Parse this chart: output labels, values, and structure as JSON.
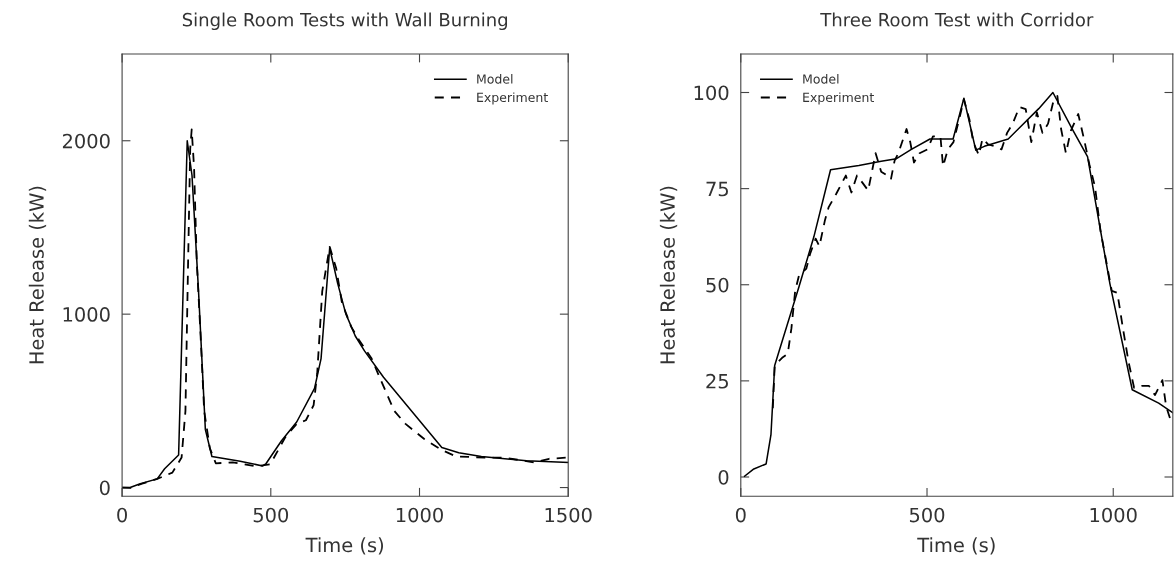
{
  "chart_data": [
    {
      "type": "line",
      "title": "Single Room Tests with Wall Burning",
      "xlabel": "Time (s)",
      "ylabel": "Heat Release (kW)",
      "xlim": [
        0,
        1500
      ],
      "xticks": [
        0,
        500,
        1000,
        1500
      ],
      "ylim": [
        -50,
        2500
      ],
      "yticks": [
        0,
        1000,
        2000
      ],
      "legend": "top right",
      "series": [
        {
          "name": "Model",
          "color": "#000000",
          "line_style": "solid",
          "x": [
            0,
            27,
            61,
            118,
            143,
            190,
            219,
            235,
            257,
            280,
            302,
            397,
            473,
            483,
            536,
            587,
            647,
            669,
            698,
            725,
            752,
            784,
            815,
            879,
            1075,
            1132,
            1208,
            1360,
            1500
          ],
          "values": [
            0,
            0,
            22,
            50,
            108,
            188,
            2000,
            1801,
            1133,
            334,
            179,
            151,
            125,
            136,
            270,
            378,
            572,
            744,
            1381,
            1176,
            1003,
            874,
            788,
            636,
            231,
            201,
            179,
            155,
            145
          ]
        },
        {
          "name": "Experiment",
          "color": "#000000",
          "line_style": "dashed",
          "x": [
            0,
            29,
            67,
            118,
            169,
            200,
            213,
            222,
            229,
            234,
            242,
            251,
            264,
            276,
            295,
            315,
            372,
            448,
            498,
            549,
            587,
            618,
            644,
            656,
            673,
            698,
            720,
            739,
            770,
            796,
            839,
            871,
            915,
            953,
            1016,
            1075,
            1124,
            1221,
            1284,
            1385,
            1436,
            1500
          ],
          "values": [
            0,
            -2,
            22,
            50,
            86,
            173,
            442,
            1305,
            1953,
            2065,
            1845,
            1305,
            874,
            442,
            227,
            140,
            145,
            123,
            134,
            291,
            367,
            388,
            475,
            658,
            1133,
            1388,
            1263,
            1068,
            928,
            852,
            744,
            615,
            442,
            367,
            280,
            216,
            179,
            173,
            173,
            145,
            166,
            173
          ]
        }
      ]
    },
    {
      "type": "line",
      "title": "Three Room Test with Corridor",
      "xlabel": "Time (s)",
      "ylabel": "Heat Release (kW)",
      "xlim": [
        0,
        1160
      ],
      "xticks": [
        0,
        500,
        1000
      ],
      "ylim": [
        -5,
        110
      ],
      "yticks": [
        0,
        25,
        50,
        75,
        100
      ],
      "legend": "top left",
      "series": [
        {
          "name": "Model",
          "color": "#000000",
          "line_style": "solid",
          "x": [
            10,
            35,
            68,
            81,
            91,
            111,
            156,
            196,
            241,
            317,
            377,
            418,
            458,
            508,
            570,
            599,
            631,
            654,
            718,
            800,
            838,
            890,
            931,
            991,
            1051,
            1122,
            1160
          ],
          "values": [
            0.2,
            2.1,
            3.4,
            11,
            29,
            35.3,
            49.4,
            62.4,
            79.9,
            81,
            82.1,
            82.8,
            85.2,
            87.9,
            87.9,
            98.5,
            85,
            86,
            87.9,
            95.8,
            100,
            90.5,
            83.3,
            50.3,
            22.7,
            19.2,
            16.7
          ]
        },
        {
          "name": "Experiment",
          "color": "#000000",
          "line_style": "dashed",
          "x": [
            86,
            91,
            111,
            126,
            136,
            146,
            156,
            176,
            186,
            201,
            211,
            226,
            236,
            256,
            282,
            297,
            312,
            327,
            342,
            362,
            377,
            393,
            403,
            413,
            423,
            445,
            455,
            465,
            480,
            501,
            516,
            536,
            543,
            556,
            571,
            586,
            599,
            614,
            624,
            639,
            649,
            664,
            684,
            700,
            715,
            730,
            748,
            765,
            780,
            795,
            810,
            825,
            838,
            850,
            860,
            873,
            886,
            906,
            921,
            936,
            951,
            966,
            981,
            996,
            1011,
            1026,
            1041,
            1056,
            1076,
            1096,
            1112,
            1132,
            1142,
            1158
          ],
          "values": [
            17.9,
            29,
            31,
            32,
            38.7,
            48.4,
            52.3,
            54.2,
            58,
            62,
            60,
            66.8,
            70.2,
            73.6,
            78.4,
            74,
            78.4,
            76.5,
            74.5,
            84.2,
            79.4,
            78.4,
            77.4,
            82.3,
            84.2,
            90.5,
            87.1,
            81.8,
            84.2,
            85.2,
            88.6,
            88.6,
            80.8,
            85.2,
            87.1,
            92.9,
            98.2,
            92.9,
            87.1,
            83.7,
            88,
            86.5,
            86,
            85.2,
            89.5,
            91.9,
            96.2,
            95.7,
            87.1,
            94.8,
            89.5,
            91.9,
            97.2,
            99.1,
            90.5,
            84.2,
            90,
            94.4,
            88.1,
            81.3,
            75.5,
            63.9,
            56.2,
            48.4,
            47.9,
            38.7,
            30,
            23.2,
            23.7,
            23.7,
            21.3,
            25.2,
            18.4,
            13.6
          ]
        }
      ]
    }
  ]
}
